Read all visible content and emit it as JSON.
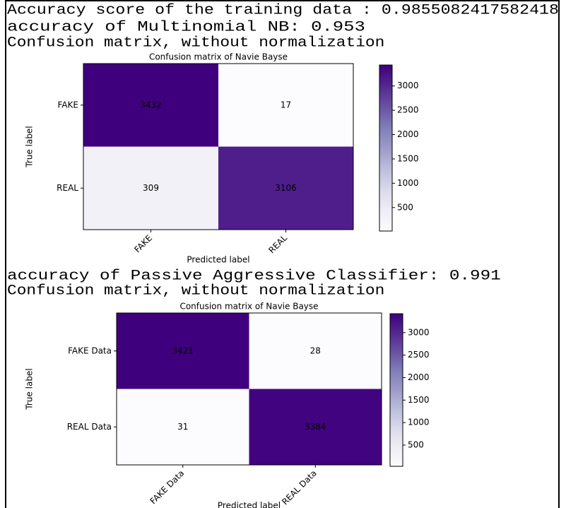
{
  "output_lines": [
    "Accuracy score of the training data :  0.9855082417582418",
    "accuracy of  Multinomial NB:    0.953",
    "Confusion matrix, without normalization",
    "accuracy of Passive Aggressive Classifier:    0.991",
    "Confusion matrix, without normalization"
  ],
  "chart_data": [
    {
      "type": "heatmap",
      "title": "Confusion matrix of Navie Bayse",
      "xlabel": "Predicted label",
      "ylabel": "True label",
      "x_categories": [
        "FAKE",
        "REAL"
      ],
      "y_categories": [
        "FAKE",
        "REAL"
      ],
      "values": [
        [
          3432,
          17
        ],
        [
          309,
          3106
        ]
      ],
      "clim": [
        17,
        3432
      ],
      "cticks": [
        500,
        1000,
        1500,
        2000,
        2500,
        3000
      ],
      "colormap": [
        "#fcfbfd",
        "#efedf5",
        "#dadaeb",
        "#bcbddc",
        "#9e9ac8",
        "#807dba",
        "#6a51a3",
        "#54278f",
        "#3f007d"
      ],
      "text_colors": [
        "#000000",
        "#ff0000"
      ]
    },
    {
      "type": "heatmap",
      "title": "Confusion matrix of Navie Bayse",
      "xlabel": "Predicted label",
      "ylabel": "True label",
      "x_categories": [
        "FAKE Data",
        "REAL Data"
      ],
      "y_categories": [
        "FAKE Data",
        "REAL Data"
      ],
      "values": [
        [
          3421,
          28
        ],
        [
          31,
          3384
        ]
      ],
      "clim": [
        28,
        3421
      ],
      "cticks": [
        500,
        1000,
        1500,
        2000,
        2500,
        3000
      ],
      "colormap": [
        "#fcfbfd",
        "#efedf5",
        "#dadaeb",
        "#bcbddc",
        "#9e9ac8",
        "#807dba",
        "#6a51a3",
        "#54278f",
        "#3f007d"
      ],
      "text_colors": [
        "#000000",
        "#ff0000"
      ]
    }
  ]
}
